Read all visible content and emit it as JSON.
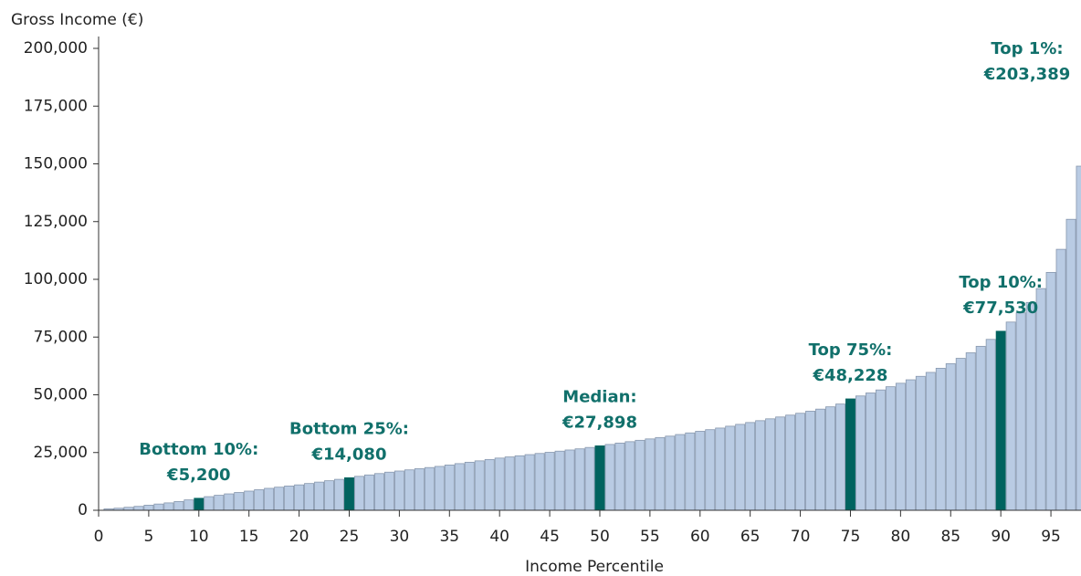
{
  "chart_data": {
    "type": "bar",
    "y_axis_label": "Gross Income (€)",
    "x_axis_label": "Income Percentile",
    "x": [
      1,
      2,
      3,
      4,
      5,
      6,
      7,
      8,
      9,
      10,
      11,
      12,
      13,
      14,
      15,
      16,
      17,
      18,
      19,
      20,
      21,
      22,
      23,
      24,
      25,
      26,
      27,
      28,
      29,
      30,
      31,
      32,
      33,
      34,
      35,
      36,
      37,
      38,
      39,
      40,
      41,
      42,
      43,
      44,
      45,
      46,
      47,
      48,
      49,
      50,
      51,
      52,
      53,
      54,
      55,
      56,
      57,
      58,
      59,
      60,
      61,
      62,
      63,
      64,
      65,
      66,
      67,
      68,
      69,
      70,
      71,
      72,
      73,
      74,
      75,
      76,
      77,
      78,
      79,
      80,
      81,
      82,
      83,
      84,
      85,
      86,
      87,
      88,
      89,
      90,
      91,
      92,
      93,
      94,
      95,
      96,
      97,
      98
    ],
    "values": [
      600,
      900,
      1300,
      1700,
      2200,
      2700,
      3200,
      3800,
      4500,
      5200,
      5900,
      6500,
      7100,
      7700,
      8300,
      8900,
      9500,
      10000,
      10500,
      11000,
      11600,
      12200,
      12800,
      13400,
      14080,
      14700,
      15300,
      15900,
      16500,
      17000,
      17500,
      18000,
      18500,
      19000,
      19600,
      20200,
      20800,
      21400,
      22000,
      22600,
      23100,
      23600,
      24100,
      24600,
      25100,
      25600,
      26100,
      26600,
      27200,
      27898,
      28500,
      29100,
      29700,
      30300,
      30900,
      31500,
      32100,
      32800,
      33500,
      34200,
      34900,
      35600,
      36400,
      37200,
      38000,
      38800,
      39600,
      40400,
      41200,
      42000,
      42900,
      43800,
      44800,
      46000,
      48228,
      49500,
      50800,
      52100,
      53500,
      55000,
      56500,
      58000,
      59700,
      61500,
      63500,
      65800,
      68200,
      71000,
      74000,
      77530,
      81500,
      85500,
      90000,
      96000,
      103000,
      113000,
      126000,
      149000
    ],
    "color": "#b9cbe3",
    "edge_color": "#8797ad",
    "highlight_color": "#00635f",
    "annotations": [
      {
        "text": "Bottom 10%:",
        "x": 10,
        "value": 5200,
        "value_label": "€5,200"
      },
      {
        "text": "Bottom 25%:",
        "x": 25,
        "value": 14080,
        "value_label": "€14,080"
      },
      {
        "text": "Median:",
        "x": 50,
        "value": 27898,
        "value_label": "€27,898"
      },
      {
        "text": "Top 75%:",
        "x": 75,
        "value": 48228,
        "value_label": "€48,228"
      },
      {
        "text": "Top 10%:",
        "x": 90,
        "value": 77530,
        "value_label": "€77,530"
      },
      {
        "text": "Top 1%:",
        "x": 99,
        "value": 203389,
        "value_label": "€203,389"
      }
    ],
    "xlim": [
      0,
      98
    ],
    "xticks": [
      0,
      5,
      10,
      15,
      20,
      25,
      30,
      35,
      40,
      45,
      50,
      55,
      60,
      65,
      70,
      75,
      80,
      85,
      90,
      95
    ],
    "ylim": [
      0,
      200000
    ],
    "yticks": [
      0,
      {
        "value": 25000,
        "label": "25,000"
      },
      {
        "value": 50000,
        "label": "50,000"
      },
      {
        "value": 75000,
        "label": "75,000"
      },
      {
        "value": 100000,
        "label": "100,000"
      },
      {
        "value": 125000,
        "label": "125,000"
      },
      {
        "value": 150000,
        "label": "150,000"
      },
      {
        "value": 175000,
        "label": "175,000"
      },
      {
        "value": 200000,
        "label": "200,000"
      }
    ]
  }
}
